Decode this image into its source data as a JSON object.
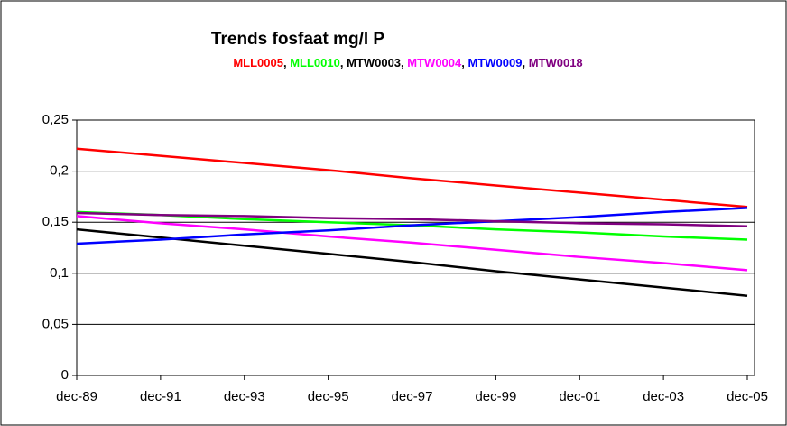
{
  "chart_data": {
    "type": "line",
    "title": "Trends fosfaat mg/l P",
    "legend_separator": ", ",
    "categories": [
      "dec-89",
      "dec-91",
      "dec-93",
      "dec-95",
      "dec-97",
      "dec-99",
      "dec-01",
      "dec-03",
      "dec-05"
    ],
    "series": [
      {
        "name": "MLL0005",
        "color": "#ff0000",
        "values": [
          0.222,
          0.215,
          0.208,
          0.201,
          0.193,
          0.186,
          0.179,
          0.172,
          0.165
        ]
      },
      {
        "name": "MLL0010",
        "color": "#00ff00",
        "values": [
          0.16,
          0.157,
          0.153,
          0.15,
          0.147,
          0.143,
          0.14,
          0.136,
          0.133
        ]
      },
      {
        "name": "MTW0003",
        "color": "#000000",
        "values": [
          0.143,
          0.135,
          0.127,
          0.119,
          0.111,
          0.102,
          0.094,
          0.086,
          0.078
        ]
      },
      {
        "name": "MTW0004",
        "color": "#ff00ff",
        "values": [
          0.156,
          0.149,
          0.143,
          0.136,
          0.13,
          0.123,
          0.116,
          0.11,
          0.103
        ]
      },
      {
        "name": "MTW0009",
        "color": "#0000ff",
        "values": [
          0.129,
          0.133,
          0.138,
          0.142,
          0.147,
          0.151,
          0.155,
          0.16,
          0.164
        ]
      },
      {
        "name": "MTW0018",
        "color": "#800080",
        "values": [
          0.159,
          0.157,
          0.156,
          0.154,
          0.153,
          0.151,
          0.149,
          0.148,
          0.146
        ]
      }
    ],
    "ylim": [
      0,
      0.25
    ],
    "yticks": [
      0,
      {
        "value": 0.05,
        "label": "0,05"
      },
      {
        "value": 0.1,
        "label": "0,1"
      },
      {
        "value": 0.15,
        "label": "0,15"
      },
      {
        "value": 0.2,
        "label": "0,2"
      },
      {
        "value": 0.25,
        "label": "0,25"
      }
    ],
    "grid": true
  }
}
